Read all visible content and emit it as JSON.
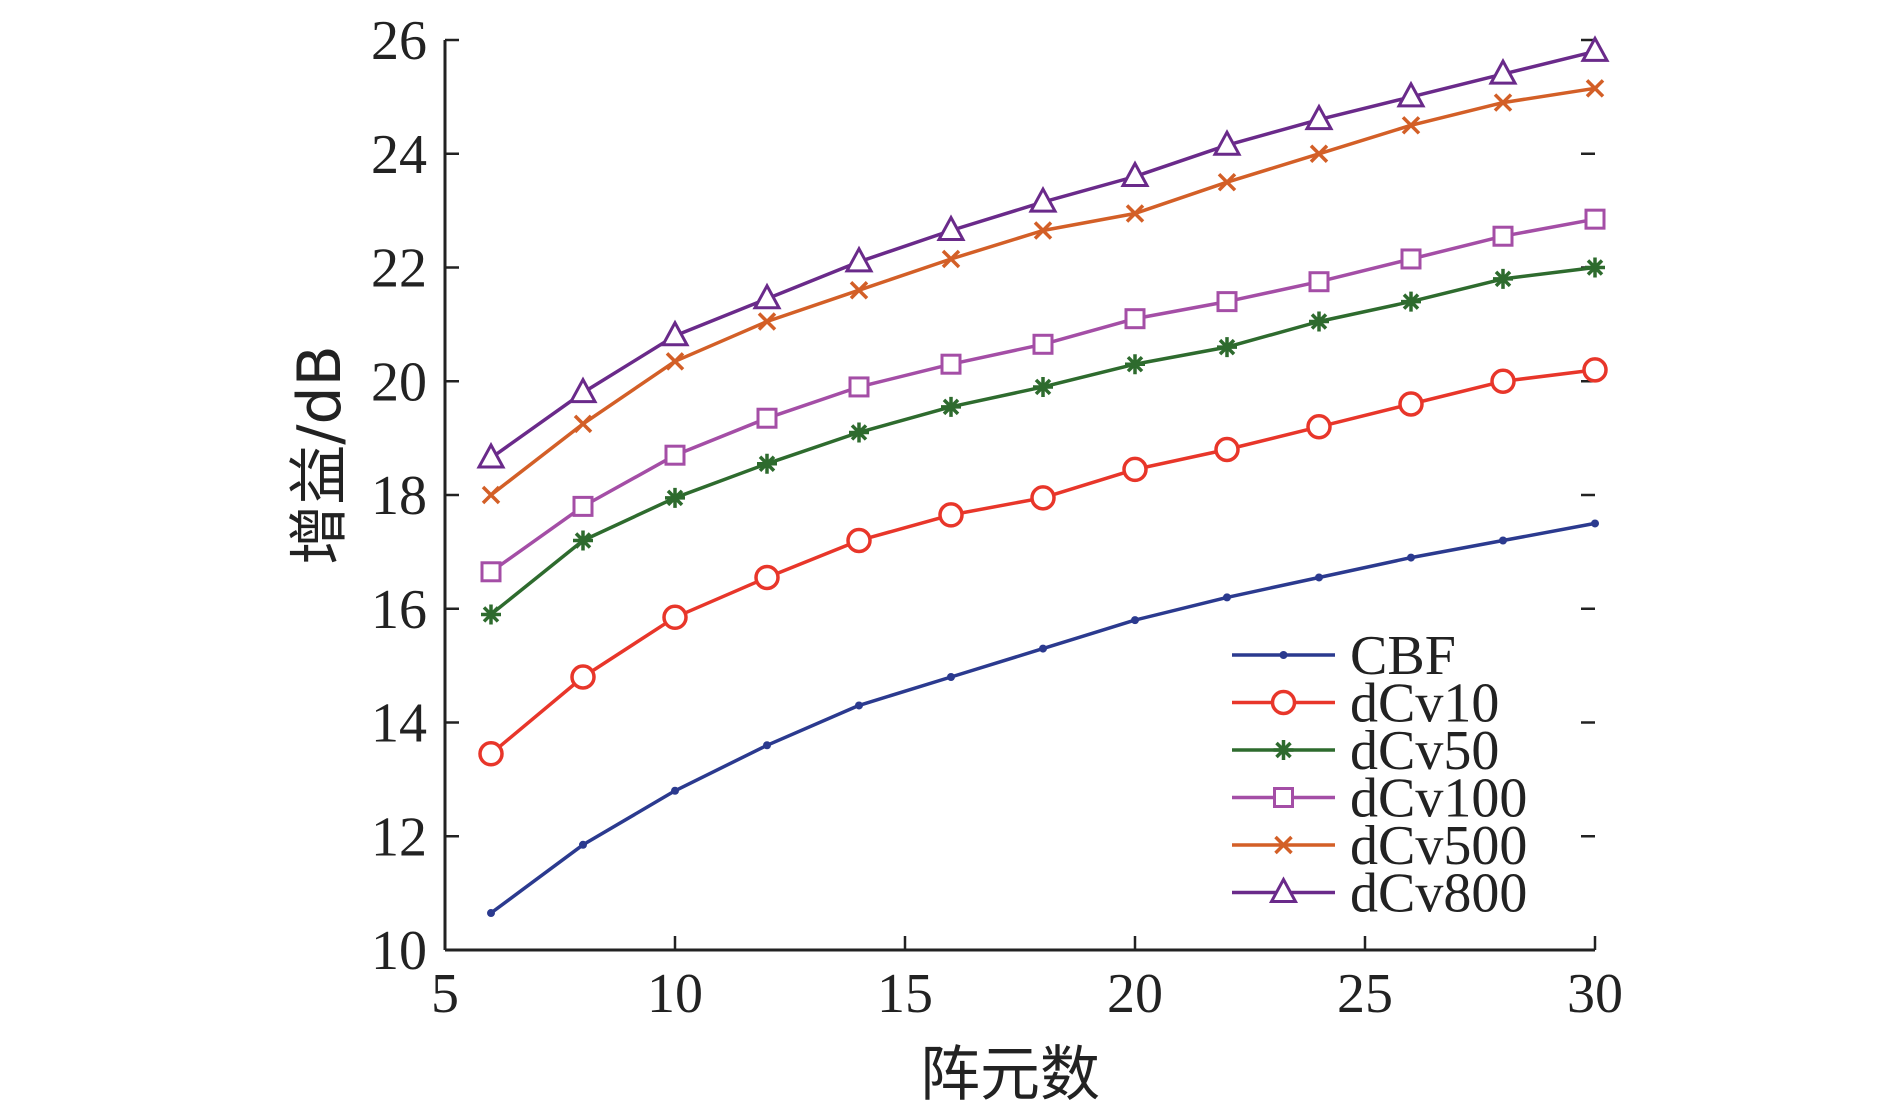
{
  "chart_data": {
    "type": "line",
    "title": "",
    "xlabel": "阵元数",
    "ylabel": "增益/dB",
    "xlim": [
      5,
      30
    ],
    "ylim": [
      10,
      26
    ],
    "xticks": [
      5,
      10,
      15,
      20,
      25,
      30
    ],
    "yticks": [
      10,
      12,
      14,
      16,
      18,
      20,
      22,
      24,
      26
    ],
    "grid": false,
    "legend_position": "bottom-right",
    "x": [
      6,
      8,
      10,
      12,
      14,
      16,
      18,
      20,
      22,
      24,
      26,
      28,
      30
    ],
    "series": [
      {
        "name": "CBF",
        "color": "#2b3a8f",
        "marker": "dot",
        "values": [
          10.65,
          11.85,
          12.8,
          13.6,
          14.3,
          14.8,
          15.3,
          15.8,
          16.2,
          16.55,
          16.9,
          17.2,
          17.5
        ]
      },
      {
        "name": "dCv10",
        "color": "#e8362a",
        "marker": "circle",
        "values": [
          13.45,
          14.8,
          15.85,
          16.55,
          17.2,
          17.65,
          17.95,
          18.45,
          18.8,
          19.2,
          19.6,
          20.0,
          20.2
        ]
      },
      {
        "name": "dCv50",
        "color": "#2e6b2e",
        "marker": "asterisk",
        "values": [
          15.9,
          17.2,
          17.95,
          18.55,
          19.1,
          19.55,
          19.9,
          20.3,
          20.6,
          21.05,
          21.4,
          21.8,
          22.0
        ]
      },
      {
        "name": "dCv100",
        "color": "#a44ea6",
        "marker": "square",
        "values": [
          16.65,
          17.8,
          18.7,
          19.35,
          19.9,
          20.3,
          20.65,
          21.1,
          21.4,
          21.75,
          22.15,
          22.55,
          22.85
        ]
      },
      {
        "name": "dCv500",
        "color": "#d35f27",
        "marker": "x",
        "values": [
          18.0,
          19.25,
          20.35,
          21.05,
          21.6,
          22.15,
          22.65,
          22.95,
          23.5,
          24.0,
          24.5,
          24.9,
          25.15
        ]
      },
      {
        "name": "dCv800",
        "color": "#6a2a8a",
        "marker": "triangle",
        "values": [
          18.65,
          19.8,
          20.8,
          21.45,
          22.1,
          22.65,
          23.15,
          23.6,
          24.15,
          24.6,
          25.0,
          25.4,
          25.8
        ]
      }
    ]
  }
}
